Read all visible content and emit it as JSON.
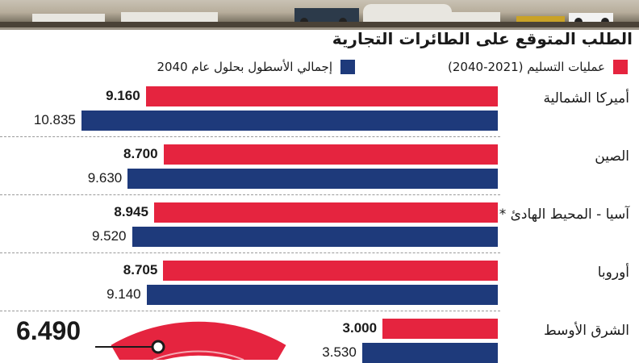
{
  "title": "الطلب المتوقع على الطائرات التجارية",
  "colors": {
    "deliveries": "#e5243f",
    "fleet": "#1e3a7b"
  },
  "chart_data": {
    "type": "bar",
    "orientation": "horizontal",
    "categories": [
      "أميركا الشمالية",
      "الصين",
      "آسيا - المحيط الهادئ *",
      "أوروبا",
      "الشرق الأوسط"
    ],
    "series": [
      {
        "name": "عمليات التسليم (2021-2040)",
        "values": [
          9160,
          8700,
          8945,
          8705,
          3000
        ],
        "labels": [
          "9.160",
          "8.700",
          "8.945",
          "8.705",
          "3.000"
        ]
      },
      {
        "name": "إجمالي الأسطول بحلول عام 2040",
        "values": [
          10835,
          9630,
          9520,
          9140,
          3530
        ],
        "labels": [
          "10.835",
          "9.630",
          "9.520",
          "9.140",
          "3.530"
        ]
      }
    ],
    "xlim": [
      0,
      11000
    ],
    "legend_position": "top",
    "annotation": "6.490"
  }
}
